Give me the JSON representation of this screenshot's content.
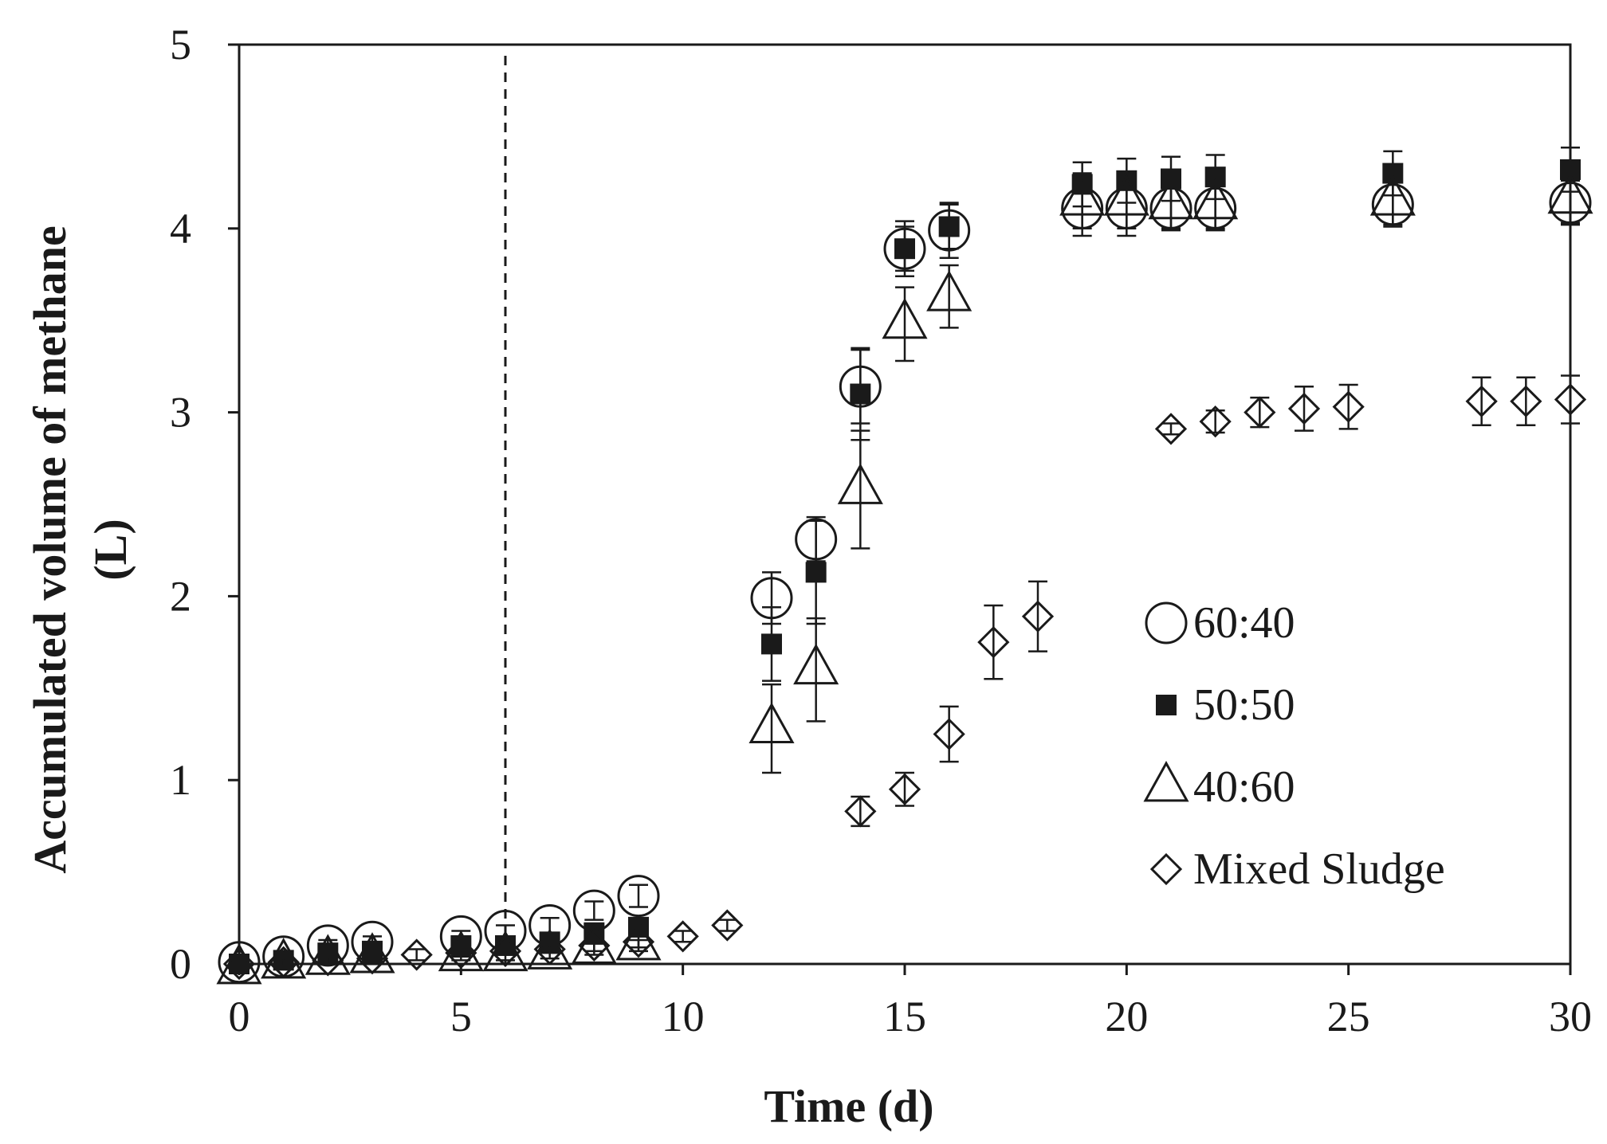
{
  "chart_data": {
    "type": "scatter",
    "title": "",
    "xlabel": "Time (d)",
    "ylabel_lines": [
      "Accumulated volume of methane",
      "(L)"
    ],
    "xlim": [
      0,
      30
    ],
    "ylim": [
      0,
      5
    ],
    "xticks": [
      0,
      5,
      10,
      15,
      20,
      25,
      30
    ],
    "yticks": [
      0,
      1,
      2,
      3,
      4,
      5
    ],
    "grid": false,
    "legend_position": "right-center",
    "reference_line": {
      "x": 6,
      "style": "dashed"
    },
    "series": [
      {
        "name": "60:40",
        "marker": "circle",
        "x": [
          0,
          1,
          2,
          3,
          5,
          6,
          7,
          8,
          9,
          12,
          13,
          14,
          15,
          16,
          19,
          20,
          21,
          22,
          26,
          30
        ],
        "y": [
          0.01,
          0.04,
          0.1,
          0.12,
          0.15,
          0.18,
          0.21,
          0.29,
          0.37,
          1.99,
          2.31,
          3.14,
          3.89,
          3.99,
          4.11,
          4.11,
          4.11,
          4.11,
          4.13,
          4.14
        ],
        "err": [
          0.02,
          0.02,
          0.03,
          0.03,
          0.03,
          0.03,
          0.04,
          0.05,
          0.06,
          0.14,
          0.12,
          0.2,
          0.15,
          0.15,
          0.15,
          0.15,
          0.12,
          0.12,
          0.12,
          0.12
        ]
      },
      {
        "name": "50:50",
        "marker": "filled-square",
        "x": [
          0,
          1,
          2,
          3,
          5,
          6,
          7,
          8,
          9,
          12,
          13,
          14,
          15,
          16,
          19,
          20,
          21,
          22,
          26,
          30
        ],
        "y": [
          0.0,
          0.02,
          0.06,
          0.07,
          0.1,
          0.1,
          0.12,
          0.17,
          0.2,
          1.74,
          2.13,
          3.1,
          3.89,
          4.01,
          4.24,
          4.26,
          4.27,
          4.28,
          4.3,
          4.32
        ],
        "err": [
          0.02,
          0.02,
          0.02,
          0.02,
          0.03,
          0.03,
          0.03,
          0.04,
          0.05,
          0.2,
          0.28,
          0.25,
          0.12,
          0.12,
          0.12,
          0.12,
          0.12,
          0.12,
          0.12,
          0.12
        ]
      },
      {
        "name": "40:60",
        "marker": "triangle",
        "x": [
          0,
          1,
          2,
          3,
          5,
          6,
          7,
          8,
          9,
          12,
          13,
          14,
          15,
          16,
          19,
          20,
          21,
          22,
          26,
          30
        ],
        "y": [
          -0.03,
          0.0,
          0.02,
          0.03,
          0.04,
          0.04,
          0.05,
          0.08,
          0.1,
          1.28,
          1.6,
          2.58,
          3.48,
          3.63,
          4.15,
          4.15,
          4.13,
          4.13,
          4.15,
          4.16
        ],
        "err": [
          0.02,
          0.02,
          0.02,
          0.02,
          0.02,
          0.02,
          0.02,
          0.03,
          0.03,
          0.24,
          0.28,
          0.32,
          0.2,
          0.17,
          0.15,
          0.15,
          0.13,
          0.13,
          0.13,
          0.13
        ]
      },
      {
        "name": "Mixed Sludge",
        "marker": "diamond",
        "x": [
          0,
          1,
          2,
          3,
          4,
          5,
          6,
          7,
          8,
          9,
          10,
          11,
          14,
          15,
          16,
          17,
          18,
          21,
          22,
          23,
          24,
          25,
          28,
          29,
          30
        ],
        "y": [
          0.0,
          0.01,
          0.02,
          0.03,
          0.05,
          0.06,
          0.07,
          0.08,
          0.1,
          0.12,
          0.15,
          0.21,
          0.83,
          0.95,
          1.25,
          1.75,
          1.89,
          2.91,
          2.95,
          3.0,
          3.02,
          3.03,
          3.06,
          3.06,
          3.07
        ],
        "err": [
          0.02,
          0.02,
          0.02,
          0.02,
          0.03,
          0.02,
          0.02,
          0.02,
          0.03,
          0.03,
          0.03,
          0.03,
          0.08,
          0.09,
          0.15,
          0.2,
          0.19,
          0.03,
          0.06,
          0.08,
          0.12,
          0.12,
          0.13,
          0.13,
          0.13
        ]
      }
    ]
  }
}
